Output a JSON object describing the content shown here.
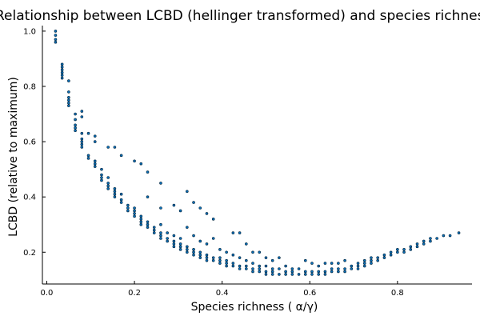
{
  "chart_data": {
    "type": "scatter",
    "title": "Relationship between LCBD (hellinger transformed) and species richness",
    "xlabel": "Species richness (  α/γ)",
    "ylabel": "LCBD (relative to maximum)",
    "xlim": [
      -0.01,
      0.97
    ],
    "ylim": [
      0.085,
      1.02
    ],
    "xticks": [
      0.0,
      0.2,
      0.4,
      0.6,
      0.8
    ],
    "xtick_labels": [
      "0.0",
      "0.2",
      "0.4",
      "0.6",
      "0.8"
    ],
    "yticks": [
      0.2,
      0.4,
      0.6,
      0.8,
      1.0
    ],
    "ytick_labels": [
      "0.2",
      "0.4",
      "0.6",
      "0.8",
      "1.0"
    ],
    "grid": false,
    "legend": "none",
    "colors": {
      "point": "#0a6fb8",
      "point_edge": "#02263f"
    },
    "series": [
      {
        "values": [
          [
            0.02,
            1.0
          ],
          [
            0.02,
            0.985
          ],
          [
            0.02,
            0.97
          ],
          [
            0.02,
            0.96
          ],
          [
            0.035,
            0.88
          ],
          [
            0.035,
            0.87
          ],
          [
            0.035,
            0.86
          ],
          [
            0.035,
            0.85
          ],
          [
            0.035,
            0.84
          ],
          [
            0.035,
            0.83
          ],
          [
            0.05,
            0.82
          ],
          [
            0.05,
            0.78
          ],
          [
            0.05,
            0.76
          ],
          [
            0.05,
            0.75
          ],
          [
            0.05,
            0.74
          ],
          [
            0.05,
            0.73
          ],
          [
            0.065,
            0.7
          ],
          [
            0.065,
            0.68
          ],
          [
            0.065,
            0.66
          ],
          [
            0.065,
            0.65
          ],
          [
            0.065,
            0.64
          ],
          [
            0.08,
            0.71
          ],
          [
            0.08,
            0.69
          ],
          [
            0.08,
            0.63
          ],
          [
            0.08,
            0.61
          ],
          [
            0.08,
            0.6
          ],
          [
            0.08,
            0.59
          ],
          [
            0.08,
            0.58
          ],
          [
            0.095,
            0.63
          ],
          [
            0.095,
            0.55
          ],
          [
            0.095,
            0.54
          ],
          [
            0.11,
            0.62
          ],
          [
            0.11,
            0.6
          ],
          [
            0.11,
            0.53
          ],
          [
            0.11,
            0.52
          ],
          [
            0.11,
            0.51
          ],
          [
            0.125,
            0.5
          ],
          [
            0.125,
            0.48
          ],
          [
            0.125,
            0.47
          ],
          [
            0.125,
            0.46
          ],
          [
            0.14,
            0.58
          ],
          [
            0.14,
            0.47
          ],
          [
            0.14,
            0.45
          ],
          [
            0.14,
            0.44
          ],
          [
            0.14,
            0.43
          ],
          [
            0.155,
            0.58
          ],
          [
            0.155,
            0.43
          ],
          [
            0.155,
            0.42
          ],
          [
            0.155,
            0.41
          ],
          [
            0.155,
            0.4
          ],
          [
            0.17,
            0.55
          ],
          [
            0.17,
            0.41
          ],
          [
            0.17,
            0.39
          ],
          [
            0.17,
            0.38
          ],
          [
            0.185,
            0.37
          ],
          [
            0.185,
            0.36
          ],
          [
            0.185,
            0.35
          ],
          [
            0.2,
            0.53
          ],
          [
            0.2,
            0.36
          ],
          [
            0.2,
            0.35
          ],
          [
            0.2,
            0.34
          ],
          [
            0.2,
            0.33
          ],
          [
            0.215,
            0.52
          ],
          [
            0.215,
            0.33
          ],
          [
            0.215,
            0.32
          ],
          [
            0.215,
            0.31
          ],
          [
            0.215,
            0.3
          ],
          [
            0.23,
            0.49
          ],
          [
            0.23,
            0.4
          ],
          [
            0.23,
            0.31
          ],
          [
            0.23,
            0.3
          ],
          [
            0.23,
            0.29
          ],
          [
            0.245,
            0.29
          ],
          [
            0.245,
            0.28
          ],
          [
            0.245,
            0.27
          ],
          [
            0.26,
            0.45
          ],
          [
            0.26,
            0.36
          ],
          [
            0.26,
            0.3
          ],
          [
            0.26,
            0.27
          ],
          [
            0.26,
            0.26
          ],
          [
            0.26,
            0.25
          ],
          [
            0.275,
            0.27
          ],
          [
            0.275,
            0.25
          ],
          [
            0.275,
            0.24
          ],
          [
            0.29,
            0.37
          ],
          [
            0.29,
            0.26
          ],
          [
            0.29,
            0.24
          ],
          [
            0.29,
            0.23
          ],
          [
            0.29,
            0.22
          ],
          [
            0.305,
            0.35
          ],
          [
            0.305,
            0.25
          ],
          [
            0.305,
            0.23
          ],
          [
            0.305,
            0.22
          ],
          [
            0.305,
            0.21
          ],
          [
            0.32,
            0.42
          ],
          [
            0.32,
            0.29
          ],
          [
            0.32,
            0.22
          ],
          [
            0.32,
            0.21
          ],
          [
            0.32,
            0.2
          ],
          [
            0.335,
            0.38
          ],
          [
            0.335,
            0.26
          ],
          [
            0.335,
            0.21
          ],
          [
            0.335,
            0.2
          ],
          [
            0.335,
            0.19
          ],
          [
            0.35,
            0.36
          ],
          [
            0.35,
            0.24
          ],
          [
            0.35,
            0.2
          ],
          [
            0.35,
            0.19
          ],
          [
            0.35,
            0.18
          ],
          [
            0.365,
            0.34
          ],
          [
            0.365,
            0.23
          ],
          [
            0.365,
            0.19
          ],
          [
            0.365,
            0.18
          ],
          [
            0.365,
            0.17
          ],
          [
            0.38,
            0.32
          ],
          [
            0.38,
            0.25
          ],
          [
            0.38,
            0.18
          ],
          [
            0.38,
            0.17
          ],
          [
            0.395,
            0.21
          ],
          [
            0.395,
            0.18
          ],
          [
            0.395,
            0.17
          ],
          [
            0.395,
            0.16
          ],
          [
            0.41,
            0.2
          ],
          [
            0.41,
            0.17
          ],
          [
            0.41,
            0.16
          ],
          [
            0.41,
            0.15
          ],
          [
            0.425,
            0.27
          ],
          [
            0.425,
            0.19
          ],
          [
            0.425,
            0.16
          ],
          [
            0.425,
            0.15
          ],
          [
            0.44,
            0.27
          ],
          [
            0.44,
            0.18
          ],
          [
            0.44,
            0.15
          ],
          [
            0.44,
            0.14
          ],
          [
            0.455,
            0.23
          ],
          [
            0.455,
            0.17
          ],
          [
            0.455,
            0.15
          ],
          [
            0.455,
            0.14
          ],
          [
            0.47,
            0.2
          ],
          [
            0.47,
            0.16
          ],
          [
            0.47,
            0.14
          ],
          [
            0.47,
            0.13
          ],
          [
            0.485,
            0.2
          ],
          [
            0.485,
            0.15
          ],
          [
            0.485,
            0.14
          ],
          [
            0.485,
            0.13
          ],
          [
            0.5,
            0.18
          ],
          [
            0.5,
            0.15
          ],
          [
            0.5,
            0.13
          ],
          [
            0.5,
            0.12
          ],
          [
            0.515,
            0.17
          ],
          [
            0.515,
            0.14
          ],
          [
            0.515,
            0.13
          ],
          [
            0.515,
            0.12
          ],
          [
            0.53,
            0.18
          ],
          [
            0.53,
            0.14
          ],
          [
            0.53,
            0.12
          ],
          [
            0.545,
            0.15
          ],
          [
            0.545,
            0.13
          ],
          [
            0.545,
            0.12
          ],
          [
            0.56,
            0.14
          ],
          [
            0.56,
            0.13
          ],
          [
            0.56,
            0.12
          ],
          [
            0.575,
            0.14
          ],
          [
            0.575,
            0.12
          ],
          [
            0.59,
            0.17
          ],
          [
            0.59,
            0.13
          ],
          [
            0.59,
            0.12
          ],
          [
            0.605,
            0.16
          ],
          [
            0.605,
            0.13
          ],
          [
            0.605,
            0.12
          ],
          [
            0.62,
            0.15
          ],
          [
            0.62,
            0.13
          ],
          [
            0.62,
            0.12
          ],
          [
            0.635,
            0.16
          ],
          [
            0.635,
            0.13
          ],
          [
            0.635,
            0.12
          ],
          [
            0.65,
            0.16
          ],
          [
            0.65,
            0.14
          ],
          [
            0.65,
            0.13
          ],
          [
            0.665,
            0.16
          ],
          [
            0.665,
            0.14
          ],
          [
            0.665,
            0.13
          ],
          [
            0.68,
            0.17
          ],
          [
            0.68,
            0.14
          ],
          [
            0.68,
            0.13
          ],
          [
            0.695,
            0.15
          ],
          [
            0.695,
            0.14
          ],
          [
            0.71,
            0.16
          ],
          [
            0.71,
            0.15
          ],
          [
            0.71,
            0.14
          ],
          [
            0.725,
            0.17
          ],
          [
            0.725,
            0.16
          ],
          [
            0.725,
            0.15
          ],
          [
            0.74,
            0.18
          ],
          [
            0.74,
            0.17
          ],
          [
            0.74,
            0.16
          ],
          [
            0.755,
            0.18
          ],
          [
            0.755,
            0.17
          ],
          [
            0.77,
            0.19
          ],
          [
            0.77,
            0.18
          ],
          [
            0.785,
            0.2
          ],
          [
            0.785,
            0.19
          ],
          [
            0.8,
            0.21
          ],
          [
            0.8,
            0.2
          ],
          [
            0.815,
            0.21
          ],
          [
            0.815,
            0.2
          ],
          [
            0.83,
            0.22
          ],
          [
            0.83,
            0.21
          ],
          [
            0.845,
            0.23
          ],
          [
            0.845,
            0.22
          ],
          [
            0.86,
            0.23
          ],
          [
            0.86,
            0.24
          ],
          [
            0.875,
            0.24
          ],
          [
            0.875,
            0.25
          ],
          [
            0.89,
            0.25
          ],
          [
            0.905,
            0.26
          ],
          [
            0.92,
            0.26
          ],
          [
            0.94,
            0.27
          ]
        ]
      }
    ]
  }
}
